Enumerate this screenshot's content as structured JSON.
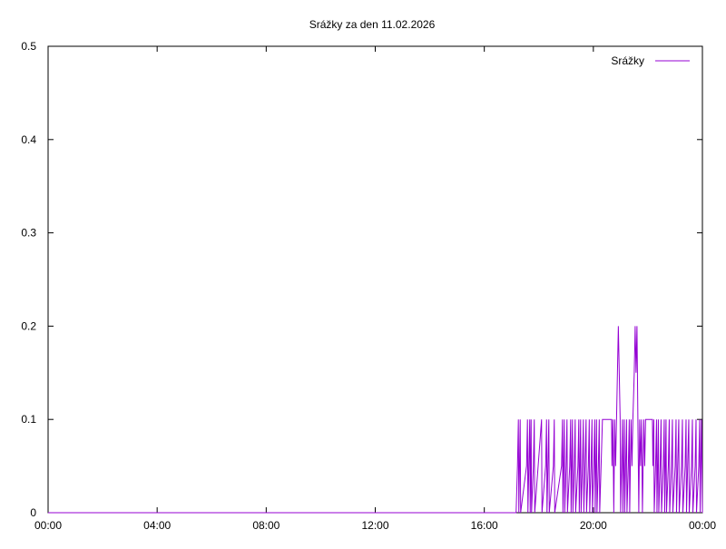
{
  "chart_data": {
    "type": "line",
    "title": "Srážky za den 11.02.2026",
    "xlabel": "",
    "ylabel": "",
    "x_unit": "minutes since 00:00",
    "xlim": [
      0,
      1440
    ],
    "ylim": [
      0,
      0.5
    ],
    "grid": false,
    "legend_position": "top-right",
    "x_ticks": [
      {
        "value": 0,
        "label": "00:00"
      },
      {
        "value": 240,
        "label": "04:00"
      },
      {
        "value": 480,
        "label": "08:00"
      },
      {
        "value": 720,
        "label": "12:00"
      },
      {
        "value": 960,
        "label": "16:00"
      },
      {
        "value": 1200,
        "label": "20:00"
      },
      {
        "value": 1440,
        "label": "00:00"
      }
    ],
    "y_ticks": [
      {
        "value": 0,
        "label": "0"
      },
      {
        "value": 0.1,
        "label": "0.1"
      },
      {
        "value": 0.2,
        "label": "0.2"
      },
      {
        "value": 0.3,
        "label": "0.3"
      },
      {
        "value": 0.4,
        "label": "0.4"
      },
      {
        "value": 0.5,
        "label": "0.5"
      }
    ],
    "series": [
      {
        "name": "Srážky",
        "color": "#9400d3",
        "points": [
          [
            0,
            0
          ],
          [
            1030,
            0
          ],
          [
            1033,
            0.05
          ],
          [
            1035,
            0.1
          ],
          [
            1036,
            0
          ],
          [
            1039,
            0.1
          ],
          [
            1040,
            0
          ],
          [
            1053,
            0.05
          ],
          [
            1055,
            0.1
          ],
          [
            1056,
            0
          ],
          [
            1058,
            0.05
          ],
          [
            1060,
            0.1
          ],
          [
            1061,
            0
          ],
          [
            1063,
            0.1
          ],
          [
            1064,
            0
          ],
          [
            1068,
            0.05
          ],
          [
            1070,
            0.1
          ],
          [
            1071,
            0
          ],
          [
            1086,
            0.1
          ],
          [
            1087,
            0
          ],
          [
            1095,
            0.05
          ],
          [
            1097,
            0.1
          ],
          [
            1098,
            0
          ],
          [
            1102,
            0.1
          ],
          [
            1103,
            0
          ],
          [
            1112,
            0.05
          ],
          [
            1114,
            0.1
          ],
          [
            1115,
            0
          ],
          [
            1130,
            0.05
          ],
          [
            1132,
            0.1
          ],
          [
            1133,
            0
          ],
          [
            1136,
            0.1
          ],
          [
            1137,
            0
          ],
          [
            1140,
            0.05
          ],
          [
            1142,
            0.1
          ],
          [
            1143,
            0
          ],
          [
            1148,
            0.05
          ],
          [
            1150,
            0.1
          ],
          [
            1151,
            0
          ],
          [
            1154,
            0.1
          ],
          [
            1155,
            0
          ],
          [
            1158,
            0.05
          ],
          [
            1160,
            0.1
          ],
          [
            1161,
            0
          ],
          [
            1166,
            0.05
          ],
          [
            1168,
            0.1
          ],
          [
            1169,
            0
          ],
          [
            1172,
            0.1
          ],
          [
            1173,
            0
          ],
          [
            1176,
            0.05
          ],
          [
            1178,
            0.1
          ],
          [
            1179,
            0
          ],
          [
            1184,
            0.1
          ],
          [
            1185,
            0
          ],
          [
            1189,
            0.05
          ],
          [
            1191,
            0.1
          ],
          [
            1192,
            0
          ],
          [
            1195,
            0.05
          ],
          [
            1197,
            0.1
          ],
          [
            1198,
            0
          ],
          [
            1201,
            0.05
          ],
          [
            1203,
            0.1
          ],
          [
            1204,
            0
          ],
          [
            1207,
            0.1
          ],
          [
            1208,
            0
          ],
          [
            1211,
            0.05
          ],
          [
            1213,
            0.1
          ],
          [
            1214,
            0
          ],
          [
            1217,
            0.05
          ],
          [
            1220,
            0.1
          ],
          [
            1240,
            0.1
          ],
          [
            1241,
            0.05
          ],
          [
            1243,
            0.1
          ],
          [
            1245,
            0
          ],
          [
            1247,
            0.1
          ],
          [
            1249,
            0.05
          ],
          [
            1251,
            0.1
          ],
          [
            1253,
            0.15
          ],
          [
            1255,
            0.2
          ],
          [
            1257,
            0.15
          ],
          [
            1259,
            0.1
          ],
          [
            1260,
            0
          ],
          [
            1262,
            0.05
          ],
          [
            1264,
            0.1
          ],
          [
            1265,
            0
          ],
          [
            1268,
            0.1
          ],
          [
            1269,
            0
          ],
          [
            1271,
            0.05
          ],
          [
            1273,
            0.1
          ],
          [
            1274,
            0
          ],
          [
            1277,
            0.05
          ],
          [
            1279,
            0.1
          ],
          [
            1280,
            0
          ],
          [
            1283,
            0.1
          ],
          [
            1285,
            0.05
          ],
          [
            1287,
            0.1
          ],
          [
            1290,
            0.15
          ],
          [
            1292,
            0.2
          ],
          [
            1294,
            0.15
          ],
          [
            1296,
            0.2
          ],
          [
            1298,
            0.1
          ],
          [
            1300,
            0
          ],
          [
            1302,
            0.1
          ],
          [
            1304,
            0.05
          ],
          [
            1306,
            0.1
          ],
          [
            1308,
            0
          ],
          [
            1311,
            0.1
          ],
          [
            1313,
            0.05
          ],
          [
            1315,
            0.1
          ],
          [
            1330,
            0.1
          ],
          [
            1331,
            0.05
          ],
          [
            1333,
            0.1
          ],
          [
            1334,
            0
          ],
          [
            1337,
            0.05
          ],
          [
            1339,
            0.1
          ],
          [
            1340,
            0
          ],
          [
            1343,
            0.1
          ],
          [
            1344,
            0
          ],
          [
            1347,
            0.05
          ],
          [
            1349,
            0.1
          ],
          [
            1350,
            0
          ],
          [
            1354,
            0.05
          ],
          [
            1356,
            0.1
          ],
          [
            1357,
            0
          ],
          [
            1360,
            0.1
          ],
          [
            1361,
            0
          ],
          [
            1365,
            0.05
          ],
          [
            1367,
            0.1
          ],
          [
            1368,
            0
          ],
          [
            1372,
            0.05
          ],
          [
            1374,
            0.1
          ],
          [
            1375,
            0
          ],
          [
            1380,
            0.05
          ],
          [
            1382,
            0.1
          ],
          [
            1383,
            0
          ],
          [
            1388,
            0.1
          ],
          [
            1389,
            0
          ],
          [
            1394,
            0.05
          ],
          [
            1396,
            0.1
          ],
          [
            1397,
            0
          ],
          [
            1402,
            0.05
          ],
          [
            1404,
            0.1
          ],
          [
            1405,
            0
          ],
          [
            1410,
            0.1
          ],
          [
            1411,
            0
          ],
          [
            1416,
            0.05
          ],
          [
            1418,
            0.1
          ],
          [
            1419,
            0
          ],
          [
            1424,
            0.05
          ],
          [
            1426,
            0.1
          ],
          [
            1427,
            0
          ],
          [
            1432,
            0.05
          ],
          [
            1434,
            0.1
          ],
          [
            1435,
            0
          ],
          [
            1438,
            0.1
          ],
          [
            1440,
            0
          ]
        ]
      }
    ]
  }
}
